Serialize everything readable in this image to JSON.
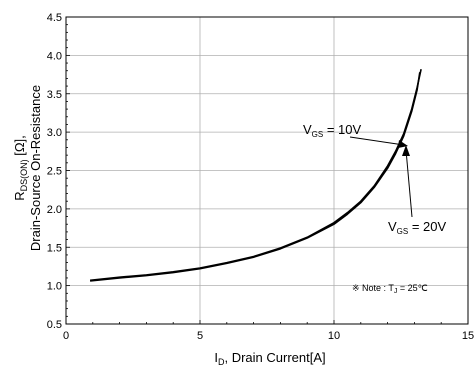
{
  "chart_data": {
    "type": "line",
    "xlabel": {
      "main": "I",
      "sub": "D",
      "rest": ", Drain Current[A]"
    },
    "ylabel": {
      "line1": {
        "main": "R",
        "sub": "DS(ON)",
        "rest": " [Ω],",
        "text": "R",
        "sub_text": "DS(ON)"
      },
      "line2": "Drain-Source On-Resistance"
    },
    "xlim": [
      0,
      15
    ],
    "ylim": [
      0.5,
      4.5
    ],
    "xticks": [
      0,
      5,
      10,
      15
    ],
    "yticks": [
      0.5,
      1.0,
      1.5,
      2.0,
      2.5,
      3.0,
      3.5,
      4.0,
      4.5
    ],
    "xtick_labels": [
      "0",
      "5",
      "10",
      "15"
    ],
    "ytick_labels": [
      "0.5",
      "1.0",
      "1.5",
      "2.0",
      "2.5",
      "3.0",
      "3.5",
      "4.0",
      "4.5"
    ],
    "grid": true,
    "series": [
      {
        "label": {
          "main": "V",
          "sub": "GS",
          "rest": " = 10V"
        },
        "x": [
          0.9,
          2,
          3,
          4,
          5,
          6,
          7,
          8,
          9,
          10,
          10.5,
          11,
          11.5,
          12,
          12.3,
          12.6,
          12.9,
          13.1,
          13.25
        ],
        "y": [
          1.07,
          1.11,
          1.14,
          1.18,
          1.23,
          1.3,
          1.38,
          1.49,
          1.63,
          1.82,
          1.95,
          2.1,
          2.3,
          2.56,
          2.75,
          2.98,
          3.3,
          3.58,
          3.82
        ]
      },
      {
        "label": {
          "main": "V",
          "sub": "GS",
          "rest": " = 20V"
        },
        "x": [
          0.9,
          2,
          3,
          4,
          5,
          6,
          7,
          8,
          9,
          10,
          10.5,
          11,
          11.5,
          12,
          12.3,
          12.6,
          12.9,
          13.1,
          13.2
        ],
        "y": [
          1.06,
          1.1,
          1.13,
          1.17,
          1.22,
          1.29,
          1.37,
          1.48,
          1.62,
          1.8,
          1.93,
          2.08,
          2.28,
          2.53,
          2.72,
          2.95,
          3.27,
          3.55,
          3.78
        ]
      }
    ],
    "note": {
      "prefix": "※ Note : T",
      "sub": "J",
      "rest": " = 25℃"
    }
  }
}
